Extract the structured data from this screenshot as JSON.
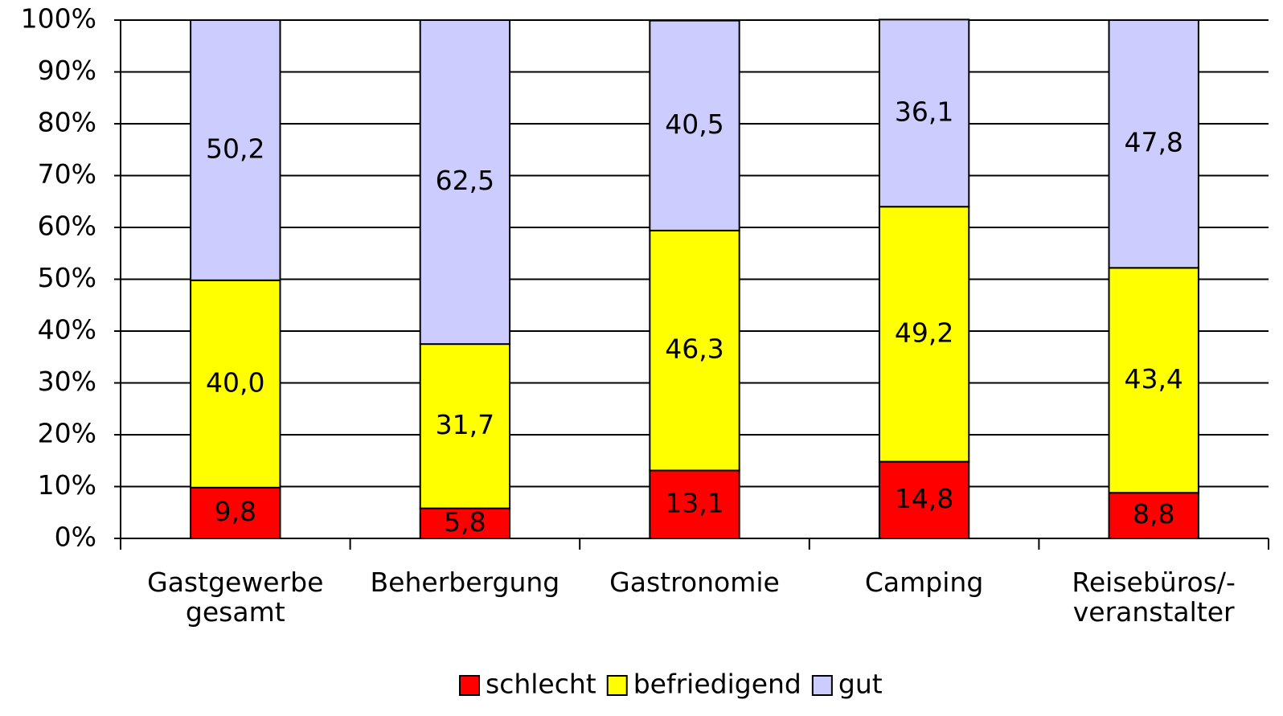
{
  "chart_data": {
    "type": "stacked_bar",
    "categories": [
      "Gastgewerbe\ngesamt",
      "Beherbergung",
      "Gastronomie",
      "Camping",
      "Reisebüros/-\nveranstalter"
    ],
    "series": [
      {
        "name": "schlecht",
        "color": "#ff0000",
        "values": [
          9.8,
          5.8,
          13.1,
          14.8,
          8.8
        ],
        "value_labels": [
          "9,8",
          "5,8",
          "13,1",
          "14,8",
          "8,8"
        ]
      },
      {
        "name": "befriedigend",
        "color": "#ffff00",
        "values": [
          40.0,
          31.7,
          46.3,
          49.2,
          43.4
        ],
        "value_labels": [
          "40,0",
          "31,7",
          "46,3",
          "49,2",
          "43,4"
        ]
      },
      {
        "name": "gut",
        "color": "#ccccff",
        "values": [
          50.2,
          62.5,
          40.5,
          36.1,
          47.8
        ],
        "value_labels": [
          "50,2",
          "62,5",
          "40,5",
          "36,1",
          "47,8"
        ]
      }
    ],
    "ylim": [
      0,
      100
    ],
    "yticks": [
      {
        "value": 0,
        "label": "0%"
      },
      {
        "value": 10,
        "label": "10%"
      },
      {
        "value": 20,
        "label": "20%"
      },
      {
        "value": 30,
        "label": "30%"
      },
      {
        "value": 40,
        "label": "40%"
      },
      {
        "value": 50,
        "label": "50%"
      },
      {
        "value": 60,
        "label": "60%"
      },
      {
        "value": 70,
        "label": "70%"
      },
      {
        "value": 80,
        "label": "80%"
      },
      {
        "value": 90,
        "label": "90%"
      },
      {
        "value": 100,
        "label": "100%"
      }
    ],
    "grid": true,
    "legend": "bottom"
  }
}
